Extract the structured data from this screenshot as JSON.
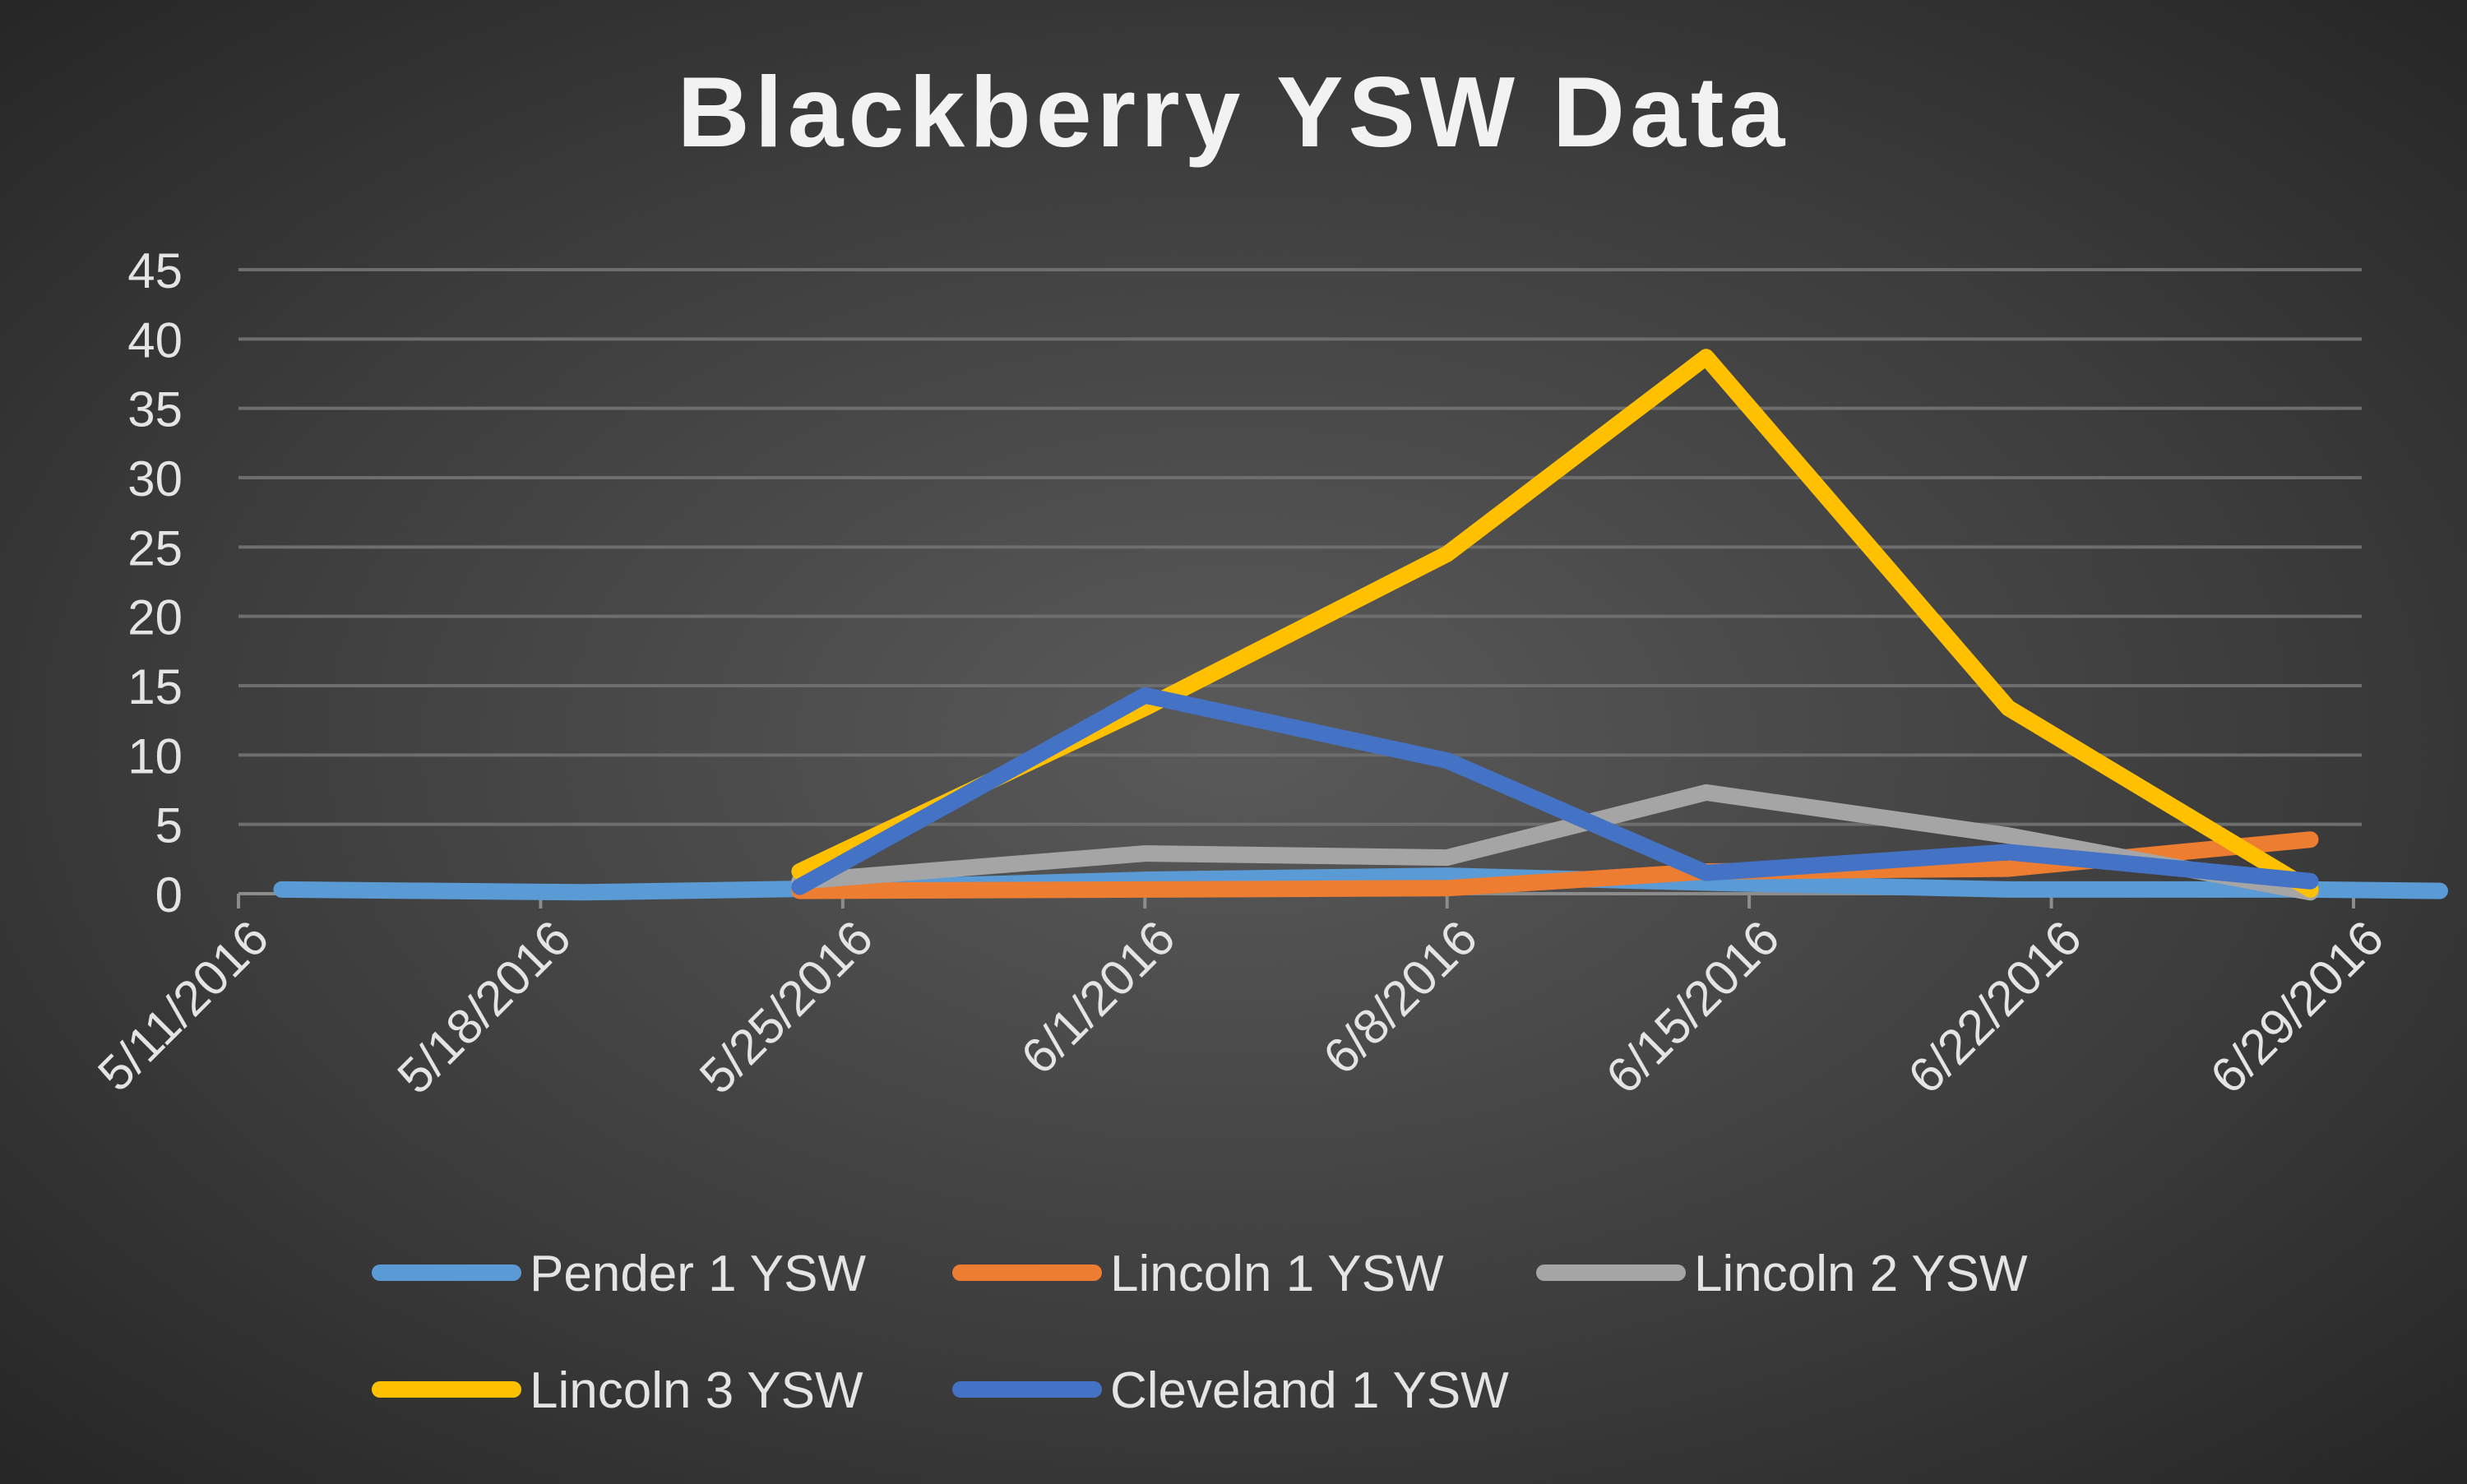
{
  "chart_data": {
    "type": "line",
    "title": "Blackberry YSW Data",
    "xlabel": "",
    "ylabel": "",
    "ylim": [
      0,
      45
    ],
    "yticks": [
      "0",
      "5",
      "10",
      "15",
      "20",
      "25",
      "30",
      "35",
      "40",
      "45"
    ],
    "x_tick_labels": [
      "5/11/2016",
      "5/18/2016",
      "5/25/2016",
      "6/1/2016",
      "6/8/2016",
      "6/15/2016",
      "6/22/2016",
      "6/29/2016"
    ],
    "x_range": [
      "5/11/2016",
      "6/29/2016"
    ],
    "grid": true,
    "legend": "bottom",
    "series": [
      {
        "name": "Pender 1 YSW",
        "color": "#5b9bd5",
        "points": [
          {
            "x": "5/12/2016",
            "y": 0.3
          },
          {
            "x": "5/19/2016",
            "y": 0.1
          },
          {
            "x": "5/25/2016",
            "y": 0.4
          },
          {
            "x": "6/1/2016",
            "y": 1.0
          },
          {
            "x": "6/8/2016",
            "y": 1.3
          },
          {
            "x": "6/14/2016",
            "y": 0.8
          },
          {
            "x": "6/21/2016",
            "y": 0.3
          },
          {
            "x": "6/28/2016",
            "y": 0.3
          },
          {
            "x": "7/1/2016",
            "y": 0.2
          }
        ]
      },
      {
        "name": "Lincoln 1 YSW",
        "color": "#ed7d31",
        "points": [
          {
            "x": "5/24/2016",
            "y": 0.2
          },
          {
            "x": "6/1/2016",
            "y": 0.3
          },
          {
            "x": "6/8/2016",
            "y": 0.4
          },
          {
            "x": "6/14/2016",
            "y": 1.6
          },
          {
            "x": "6/21/2016",
            "y": 1.8
          },
          {
            "x": "6/28/2016",
            "y": 3.9
          }
        ]
      },
      {
        "name": "Lincoln 2 YSW",
        "color": "#a5a5a5",
        "points": [
          {
            "x": "5/24/2016",
            "y": 0.9
          },
          {
            "x": "6/1/2016",
            "y": 2.9
          },
          {
            "x": "6/8/2016",
            "y": 2.6
          },
          {
            "x": "6/14/2016",
            "y": 7.3
          },
          {
            "x": "6/21/2016",
            "y": 4.2
          },
          {
            "x": "6/28/2016",
            "y": 0.1
          }
        ]
      },
      {
        "name": "Lincoln 3 YSW",
        "color": "#ffc000",
        "points": [
          {
            "x": "5/24/2016",
            "y": 1.6
          },
          {
            "x": "6/1/2016",
            "y": 13.4
          },
          {
            "x": "6/8/2016",
            "y": 24.5
          },
          {
            "x": "6/14/2016",
            "y": 38.7
          },
          {
            "x": "6/21/2016",
            "y": 13.4
          },
          {
            "x": "6/28/2016",
            "y": 0.3
          }
        ]
      },
      {
        "name": "Cleveland 1 YSW",
        "color": "#4472c4",
        "points": [
          {
            "x": "5/24/2016",
            "y": 0.5
          },
          {
            "x": "6/1/2016",
            "y": 14.3
          },
          {
            "x": "6/8/2016",
            "y": 9.6
          },
          {
            "x": "6/14/2016",
            "y": 1.5
          },
          {
            "x": "6/21/2016",
            "y": 3.0
          },
          {
            "x": "6/28/2016",
            "y": 0.9
          }
        ]
      }
    ]
  }
}
